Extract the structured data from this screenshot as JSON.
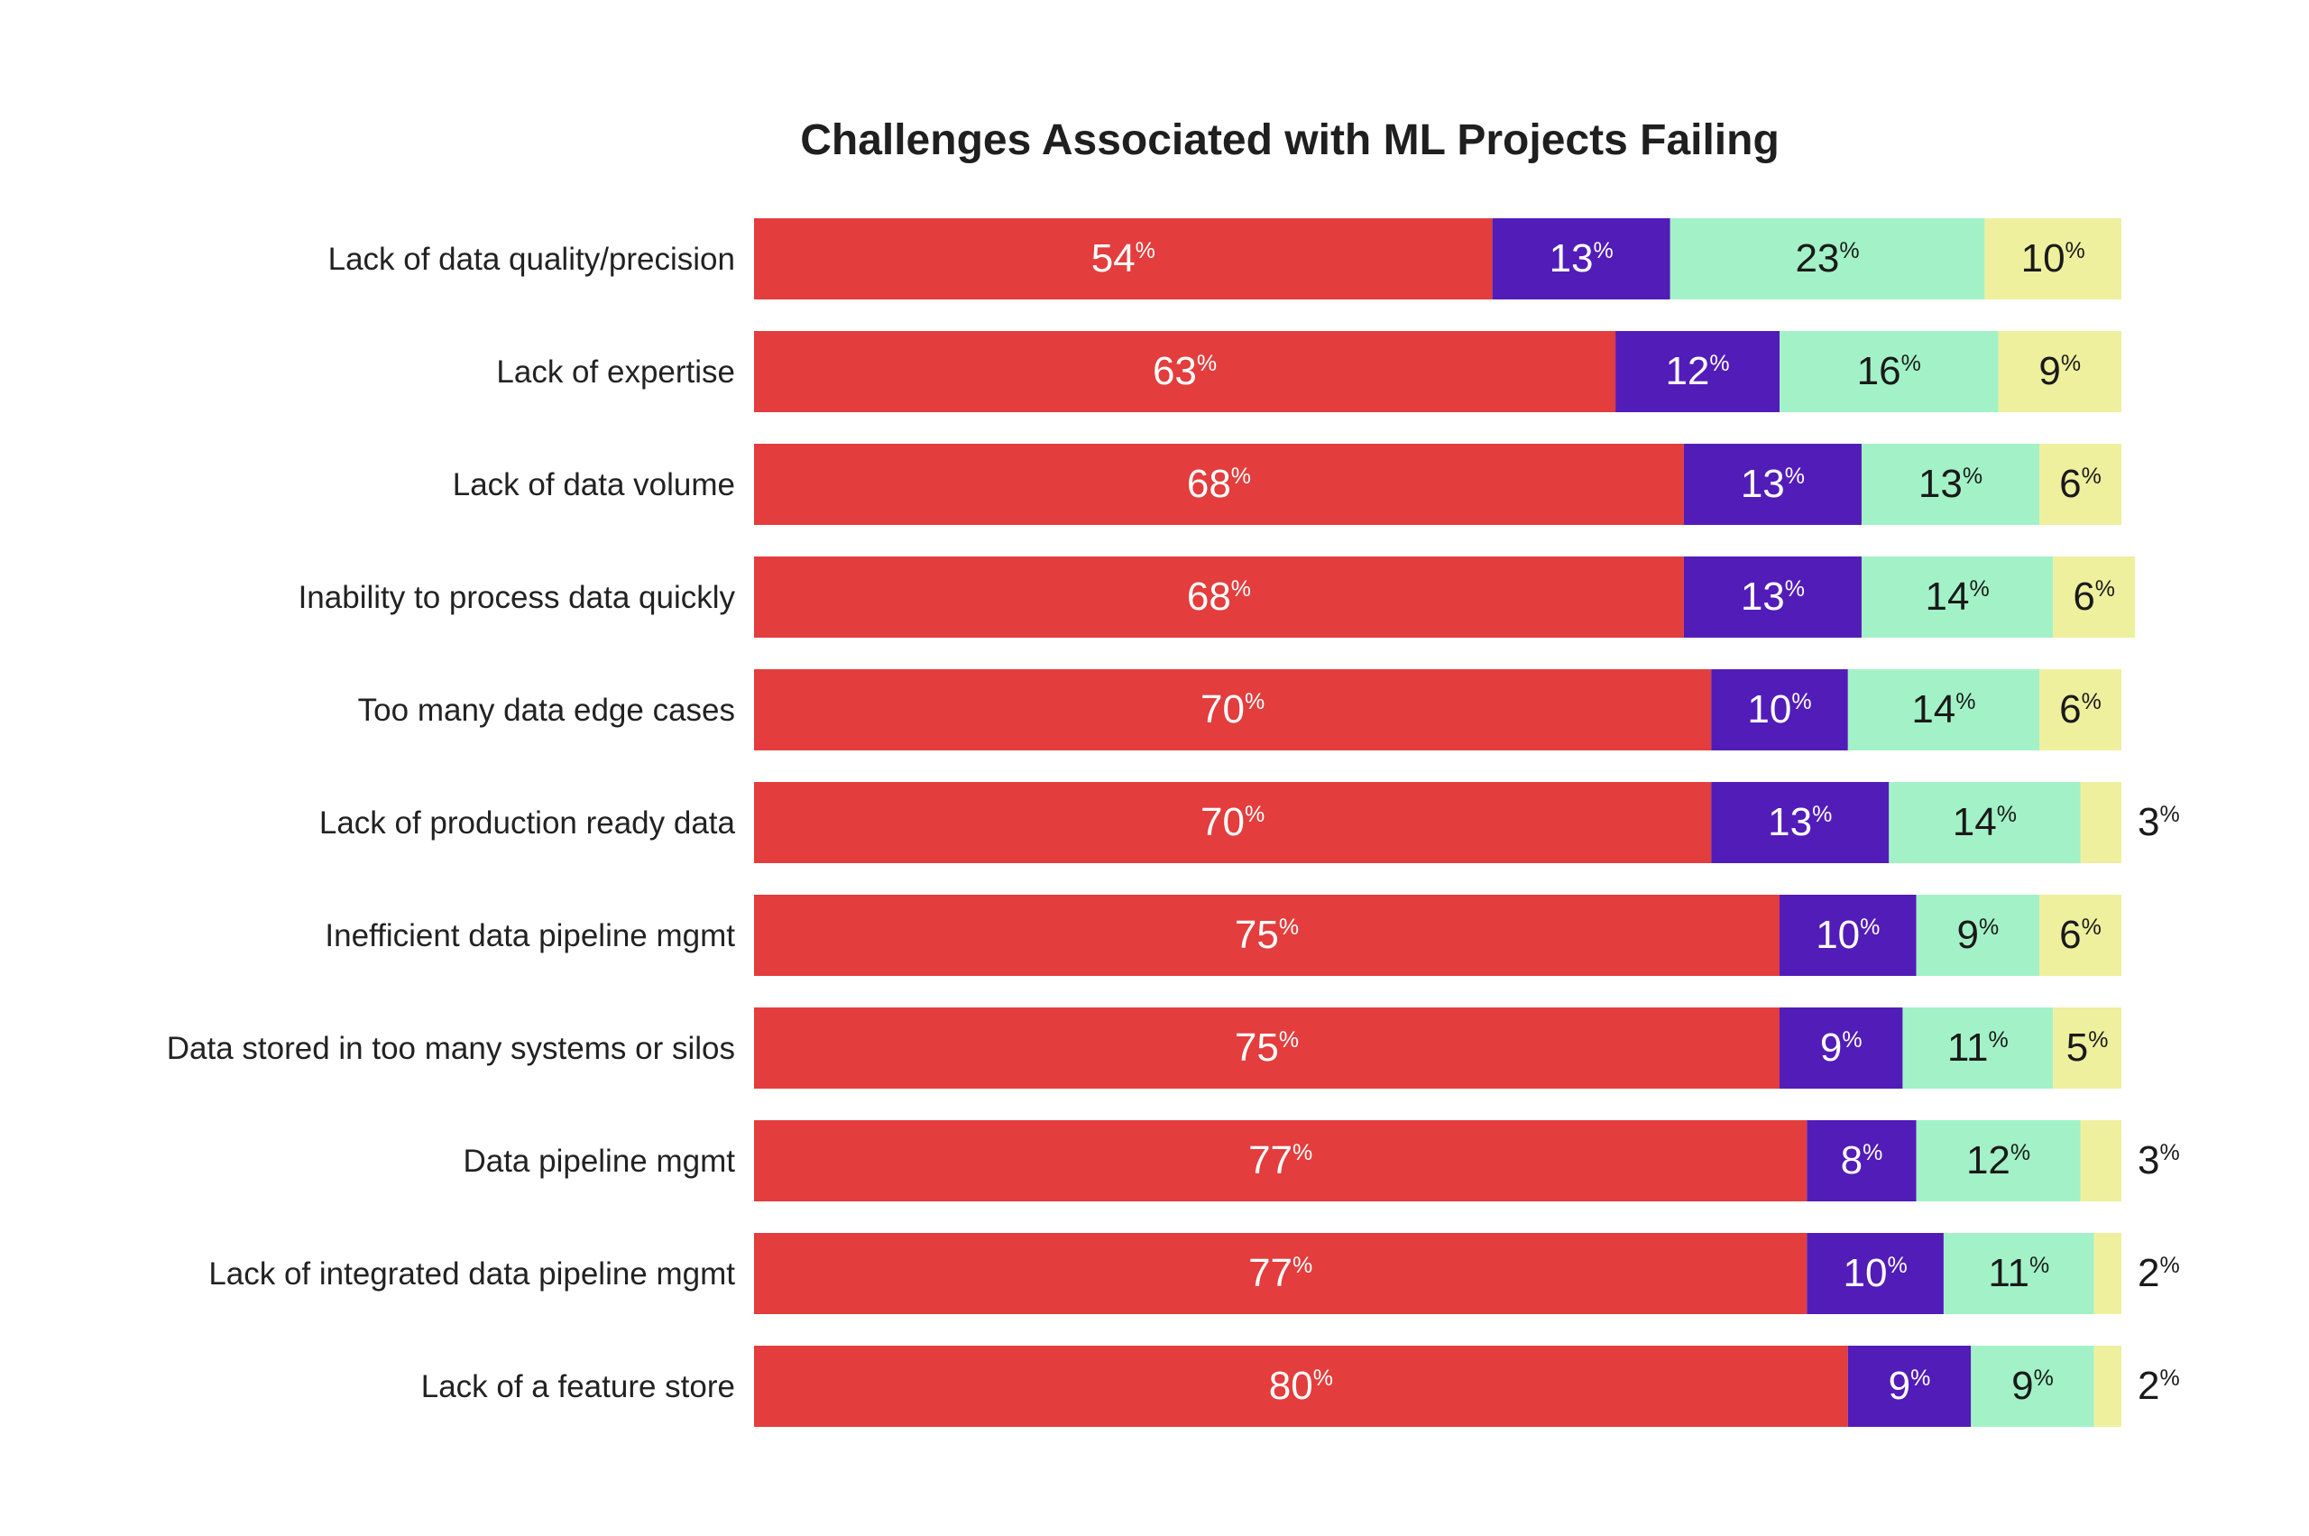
{
  "chart_data": {
    "type": "bar",
    "orientation": "horizontal",
    "stacked": true,
    "title": "Challenges Associated with ML Projects Failing",
    "xlabel": "",
    "ylabel": "",
    "xlim": [
      0,
      100
    ],
    "grid": false,
    "legend": "none",
    "value_suffix": "%",
    "categories": [
      "Lack of data quality/precision",
      "Lack of expertise",
      "Lack of data volume",
      "Inability to process data quickly",
      "Too many data edge cases",
      "Lack of production ready data",
      "Inefficient data pipeline mgmt",
      "Data stored in too many systems or silos",
      "Data pipeline mgmt",
      "Lack of integrated data pipeline mgmt",
      "Lack of a feature store"
    ],
    "series": [
      {
        "name": "segment-1",
        "color": "#e33d3d",
        "label_color": "#ffffff",
        "values": [
          54,
          63,
          68,
          68,
          70,
          70,
          75,
          75,
          77,
          77,
          80
        ]
      },
      {
        "name": "segment-2",
        "color": "#521cb8",
        "label_color": "#ffffff",
        "values": [
          13,
          12,
          13,
          13,
          10,
          13,
          10,
          9,
          8,
          10,
          9
        ]
      },
      {
        "name": "segment-3",
        "color": "#a3f2c7",
        "label_color": "#1a1a1a",
        "values": [
          23,
          16,
          13,
          14,
          14,
          14,
          9,
          11,
          12,
          11,
          9
        ]
      },
      {
        "name": "segment-4",
        "color": "#eef09e",
        "label_color": "#1a1a1a",
        "values": [
          10,
          9,
          6,
          6,
          6,
          3,
          6,
          5,
          3,
          2,
          2
        ]
      }
    ]
  }
}
